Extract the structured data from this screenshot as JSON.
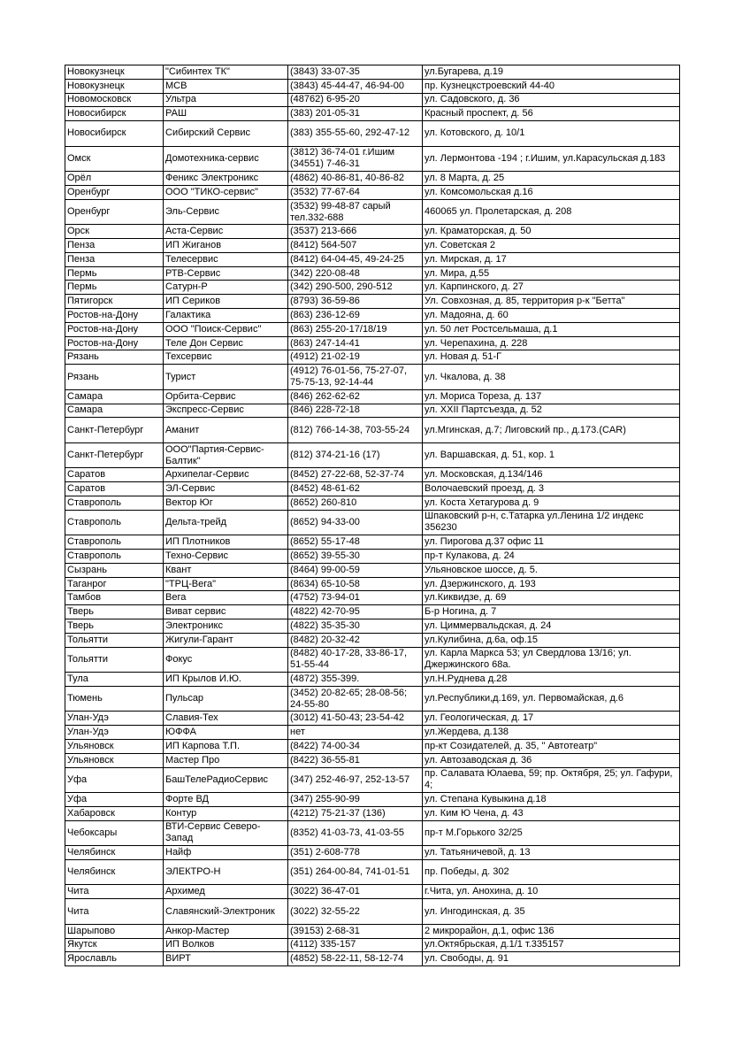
{
  "table": {
    "rows": [
      [
        "Новокузнецк",
        "\"Сибинтех ТК\"",
        "(3843) 33-07-35",
        "ул.Бугарева, д.19"
      ],
      [
        "Новокузнецк",
        "МСВ",
        "(3843) 45-44-47, 46-94-00",
        "пр. Кузнецкстроевский 44-40"
      ],
      [
        "Новомосковск",
        "Ультра",
        "(48762) 6-95-20",
        "ул. Садовского, д. 36"
      ],
      [
        "Новосибирск",
        "РАШ",
        "(383) 201-05-31",
        "Красный проспект, д. 56"
      ],
      [
        "Новосибирск",
        "Сибирский Сервис",
        "(383) 355-55-60, 292-47-12",
        "ул. Котовского, д. 10/1"
      ],
      [
        "Омск",
        "Домотехника-сервис",
        "(3812) 36-74-01 г.Ишим (34551) 7-46-31",
        "ул. Лермонтова -194 ;   г.Ишим, ул.Карасульская д.183"
      ],
      [
        "Орёл",
        "Феникс Электроникс",
        "(4862) 40-86-81, 40-86-82",
        "ул. 8 Марта, д. 25"
      ],
      [
        "Оренбург",
        "ООО \"ТИКО-сервис\"",
        "(3532) 77-67-64",
        "ул. Комсомольская д.16"
      ],
      [
        "Оренбург",
        "Эль-Сервис",
        "(3532) 99-48-87    сарый тел.332-688",
        "460065   ул. Пролетарская, д. 208"
      ],
      [
        "Орск",
        "Аста-Сервис",
        "(3537) 213-666",
        "ул. Краматорская, д. 50"
      ],
      [
        "Пенза",
        "ИП Жиганов",
        "(8412) 564-507",
        "ул. Советская 2"
      ],
      [
        "Пенза",
        "Телесервис",
        "(8412) 64-04-45, 49-24-25",
        "ул. Мирская, д. 17"
      ],
      [
        "Пермь",
        "РТВ-Сервис",
        "(342) 220-08-48",
        "ул. Мира, д.55"
      ],
      [
        "Пермь",
        "Сатурн-Р",
        "(342) 290-500, 290-512",
        "ул. Карпинского, д. 27"
      ],
      [
        "Пятигорск",
        "ИП Сериков",
        "(8793) 36-59-86",
        "Ул. Совхозная, д. 85, территория р-к \"Бетта\""
      ],
      [
        "Ростов-на-Дону",
        "Галактика",
        "(863) 236-12-69",
        "ул. Мадояна, д. 60"
      ],
      [
        "Ростов-на-Дону",
        "ООО \"Поиск-Сервис\"",
        "(863) 255-20-17/18/19",
        "ул. 50 лет Ростсельмаша, д.1"
      ],
      [
        "Ростов-на-Дону",
        "Теле Дон Сервис",
        "(863) 247-14-41",
        "ул. Черепахина, д. 228"
      ],
      [
        "Рязань",
        "Техсервис",
        "(4912) 21-02-19",
        "ул.  Новая  д. 51-Г"
      ],
      [
        "Рязань",
        "Турист",
        "(4912) 76-01-56, 75-27-07, 75-75-13, 92-14-44",
        "ул. Чкалова, д. 38"
      ],
      [
        "Самара",
        "Орбита-Сервис",
        "(846) 262-62-62",
        "ул. Мориса Тореза, д. 137"
      ],
      [
        "Самара",
        "Экспресс-Сервис",
        "(846) 228-72-18",
        "ул.  XXII Партсъезда,  д. 52"
      ],
      [
        "Санкт-Петербург",
        "Аманит",
        "(812) 766-14-38, 703-55-24",
        "ул.Мгинская, д.7; Лиговский пр., д.173.(CAR)"
      ],
      [
        "Санкт-Петербург",
        "ООО\"Партия-Сервис-Балтик\"",
        "(812) 374-21-16 (17)",
        "ул. Варшавская, д. 51, кор. 1"
      ],
      [
        "Саратов",
        "Архипелаг-Сервис",
        "(8452) 27-22-68, 52-37-74",
        "ул. Московская, д.134/146"
      ],
      [
        "Саратов",
        "ЭЛ-Сервис",
        "(8452) 48-61-62",
        "Волочаевский проезд, д. 3"
      ],
      [
        "Ставрополь",
        "Вектор Юг",
        "(8652) 260-810",
        "ул. Коста Хетагурова д. 9"
      ],
      [
        "Ставрополь",
        "Дельта-трейд",
        "(8652) 94-33-00",
        " Шпаковский р-н, с.Татарка ул.Ленина 1/2 индекс 356230"
      ],
      [
        "Ставрополь",
        "ИП Плотников",
        "(8652) 55-17-48",
        "ул. Пирогова д.37 офис 11"
      ],
      [
        "Ставрополь",
        "Техно-Сервис",
        "(8652) 39-55-30",
        "пр-т Кулакова, д. 24"
      ],
      [
        "Сызрань",
        "Квант",
        "(8464) 99-00-59",
        "Ульяновское шоссе, д. 5."
      ],
      [
        "Таганрог",
        "\"ТРЦ-Вега\"",
        "(8634) 65-10-58",
        "ул. Дзержинского,  д. 193"
      ],
      [
        "Тамбов",
        "Вега",
        "(4752) 73-94-01",
        "ул.Киквидзе, д. 69"
      ],
      [
        "Тверь",
        "Виват сервис",
        "(4822) 42-70-95",
        "Б-р Ногина, д. 7"
      ],
      [
        "Тверь",
        "Электроникс",
        "(4822) 35-35-30",
        "ул. Циммервальдская, д. 24"
      ],
      [
        "Тольятти",
        "Жигули-Гарант",
        "(8482) 20-32-42",
        "ул.Кулибина, д.6а, оф.15"
      ],
      [
        "Тольятти",
        "Фокус",
        "(8482) 40-17-28, 33-86-17, 51-55-44",
        "ул. Карла Маркса 53; ул Свердлова 13/16; ул. Джержинского 68а."
      ],
      [
        "Тула",
        "ИП Крылов И.Ю.",
        "(4872) 355-399.",
        "ул.Н.Руднева д.28"
      ],
      [
        "Тюмень",
        "Пульсар",
        "(3452) 20-82-65; 28-08-56; 24-55-80",
        "ул.Республики,д.169, ул. Первомайская, д.6"
      ],
      [
        "Улан-Удэ",
        "Славия-Тех",
        "(3012) 41-50-43; 23-54-42",
        "ул. Геологическая, д. 17"
      ],
      [
        "Улан-Удэ",
        "ЮФФА",
        "нет",
        "ул.Жердева, д.138"
      ],
      [
        "Ульяновск",
        "ИП Карпова Т.П.",
        "(8422)  74-00-34",
        "пр-кт Созидателей, д. 35, \" Автотеатр\""
      ],
      [
        "Ульяновск",
        "Мастер Про",
        "(8422) 36-55-81",
        "ул. Автозаводская д. 36"
      ],
      [
        "Уфа",
        "БашТелеРадиоСервис",
        "(347) 252-46-97, 252-13-57",
        "пр. Салавата Юлаева, 59; пр. Октября, 25; ул. Гафури, 4;"
      ],
      [
        "Уфа",
        "Форте ВД",
        "(347) 255-90-99",
        "ул. Степана Кувыкина д.18"
      ],
      [
        "Хабаровск",
        "Контур",
        "(4212) 75-21-37 (136)",
        "ул. Ким Ю Чена, д. 43"
      ],
      [
        "Чебоксары",
        "ВТИ-Сервис Северо-Запад",
        "(8352) 41-03-73, 41-03-55",
        "пр-т М.Горького 32/25"
      ],
      [
        "Челябинск",
        "Найф",
        "(351) 2-608-778",
        "ул. Татьяничевой, д. 13"
      ],
      [
        "Челябинск",
        "ЭЛЕКТРО-Н",
        "(351) 264-00-84, 741-01-51",
        "пр. Победы, д. 302"
      ],
      [
        "Чита",
        "Архимед",
        "(3022) 36-47-01",
        "г.Чита, ул. Анохина, д. 10"
      ],
      [
        "Чита",
        "Славянский-Электроник",
        "(3022) 32-55-22",
        "ул. Ингодинская, д. 35"
      ],
      [
        "Шарыпово",
        "Анкор-Мастер",
        "(39153) 2-68-31",
        "2 микрорайон, д.1, офис 136"
      ],
      [
        "Якутск",
        "ИП Волков",
        "(4112) 335-157",
        "ул.Октябрьская, д.1/1 т.335157"
      ],
      [
        "Ярославль",
        "ВИРТ",
        "(4852) 58-22-11, 58-12-74",
        "ул. Свободы, д. 91"
      ]
    ]
  }
}
